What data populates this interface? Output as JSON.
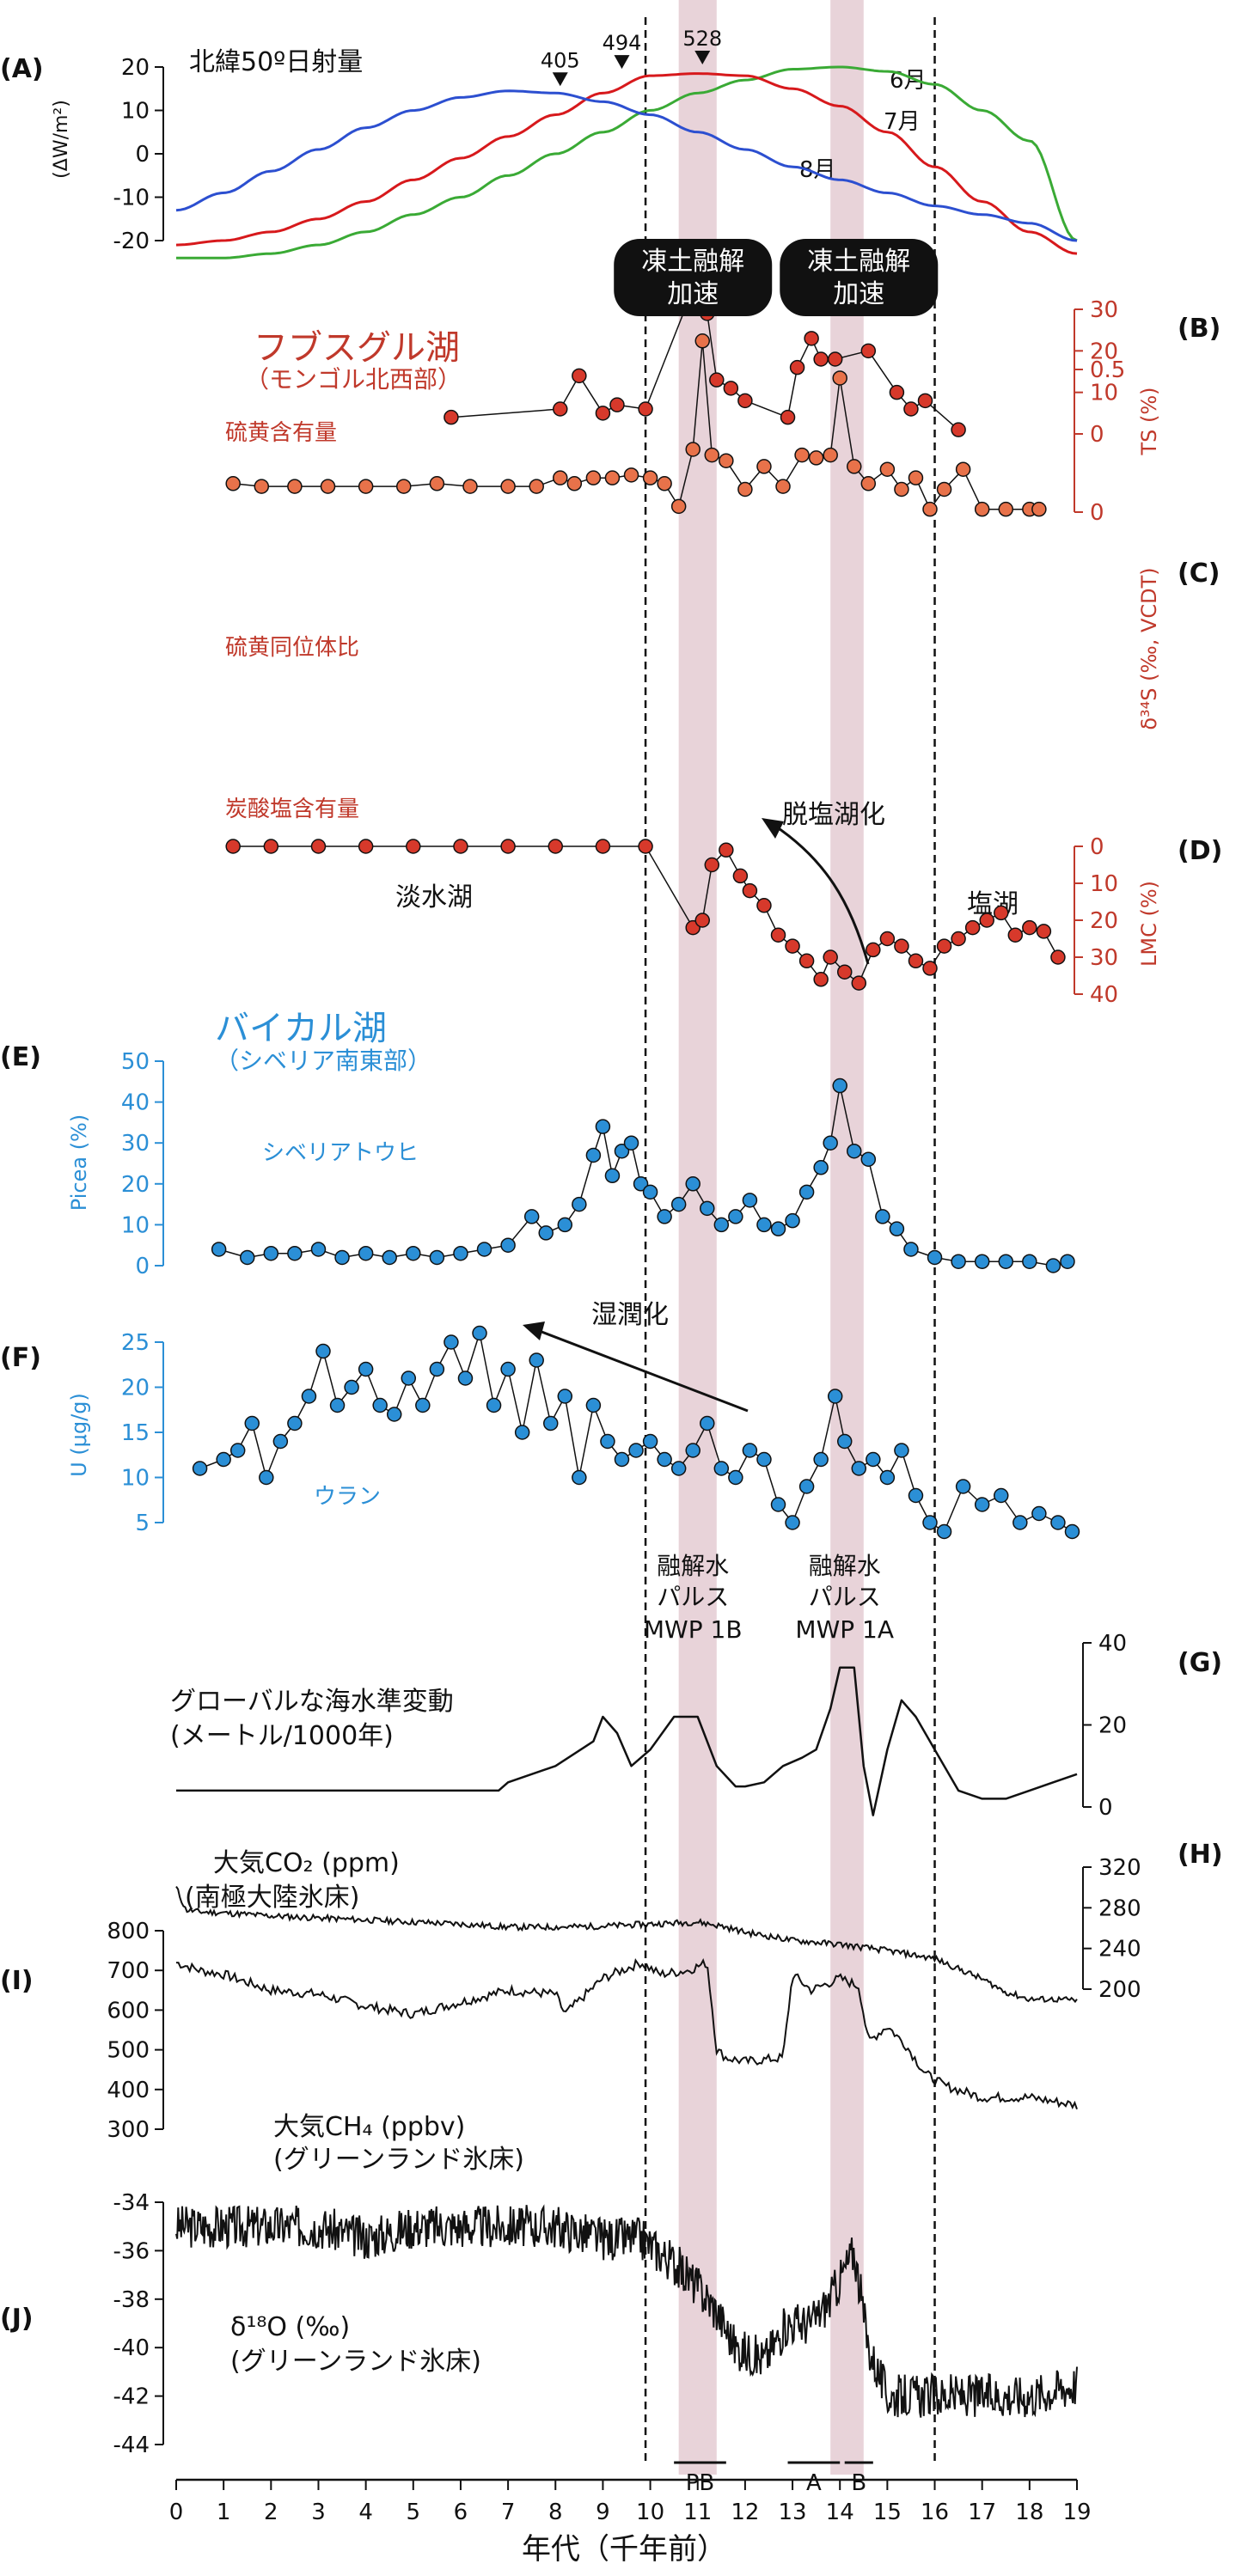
{
  "colors": {
    "insolation": {
      "jun": "#3aaa35",
      "jul": "#d7191c",
      "aug": "#2c4fd0"
    },
    "hovsgol_ts": "#e8724a",
    "hovsgol_title": "#c0392b",
    "hovsgol_text": "#c0392b",
    "d34s": "#c0392b",
    "lmc": "#c0392b",
    "baikal": "#2b8fd6",
    "baikal_title": "#2b8fd6",
    "band": "#e8d3d9",
    "black": "#111111"
  },
  "bands_kyr": [
    [
      10.6,
      11.4
    ],
    [
      13.8,
      14.5
    ]
  ],
  "dashed_lines_kyr": [
    9.9,
    16.0
  ],
  "x_axis": {
    "label": "年代（千年前）",
    "ticks": [
      "0",
      "1",
      "2",
      "3",
      "4",
      "5",
      "6",
      "7",
      "8",
      "9",
      "10",
      "11",
      "12",
      "13",
      "14",
      "15",
      "16",
      "17",
      "18",
      "19"
    ],
    "min": 0,
    "max": 19
  },
  "callouts": [
    {
      "line1": "凍土融解",
      "line2": "加速",
      "center_kyr": 10.9
    },
    {
      "line1": "凍土融解",
      "line2": "加速",
      "center_kyr": 14.4
    }
  ],
  "mwp_labels": [
    {
      "line1": "融解水",
      "line2": "パルス",
      "line3": "MWP 1B"
    },
    {
      "line1": "融解水",
      "line2": "パルス",
      "line3": "MWP 1A"
    }
  ],
  "period_bars": [
    {
      "label": "PB",
      "from": 10.5,
      "to": 11.6
    },
    {
      "label": "A",
      "from": 12.9,
      "to": 14.0
    },
    {
      "label": "B",
      "from": 14.1,
      "to": 14.7
    }
  ],
  "chart_data": [
    {
      "panel": "(A)",
      "type": "line",
      "title": "北緯50º日射量",
      "ylabel": "(ΔW/m²)",
      "ylim": [
        -25,
        25
      ],
      "yticks": [
        "20",
        "10",
        "0",
        "-10",
        "-20"
      ],
      "series": [
        {
          "name": "6月",
          "x": [
            0,
            1,
            2,
            3,
            4,
            5,
            6,
            7,
            8,
            9,
            10,
            11,
            12,
            13,
            14,
            15,
            16,
            17,
            18,
            19
          ],
          "values": [
            -24,
            -24,
            -23,
            -21,
            -18,
            -14,
            -10,
            -5,
            0,
            5,
            10,
            14,
            17,
            19.5,
            20,
            19,
            16,
            10,
            3,
            -20
          ]
        },
        {
          "name": "7月",
          "x": [
            0,
            1,
            2,
            3,
            4,
            5,
            6,
            7,
            8,
            9,
            10,
            11,
            12,
            13,
            14,
            15,
            16,
            17,
            18,
            19
          ],
          "values": [
            -21,
            -20,
            -18,
            -15,
            -11,
            -6,
            -1,
            4,
            9,
            14,
            18,
            18.5,
            18,
            15,
            11,
            5,
            -3,
            -11,
            -18,
            -23
          ]
        },
        {
          "name": "8月",
          "x": [
            0,
            1,
            2,
            3,
            4,
            5,
            6,
            7,
            8,
            9,
            10,
            11,
            12,
            13,
            14,
            15,
            16,
            17,
            18,
            19
          ],
          "values": [
            -13,
            -9,
            -4,
            1,
            6,
            10,
            13,
            14.5,
            14,
            12,
            9,
            5,
            1,
            -3,
            -6,
            -9,
            -12,
            -14,
            -16,
            -20
          ]
        }
      ],
      "markers": [
        {
          "label": "405",
          "x": 8.1,
          "y": 14
        },
        {
          "label": "494",
          "x": 9.4,
          "y": 18
        },
        {
          "label": "528",
          "x": 11.1,
          "y": 19
        }
      ]
    },
    {
      "panel": "(B)",
      "type": "scatter",
      "title": "フブスグル湖",
      "subtitle": "（モンゴル北西部）",
      "annotation": "硫黄含有量",
      "ylabel": "TS (%)",
      "ylim": [
        0,
        0.65
      ],
      "yticks": [
        "0.5",
        "0"
      ],
      "x": [
        1.2,
        1.8,
        2.5,
        3.2,
        4.0,
        4.8,
        5.5,
        6.2,
        7.0,
        7.6,
        8.1,
        8.4,
        8.8,
        9.2,
        9.6,
        10.0,
        10.3,
        10.6,
        10.9,
        11.1,
        11.3,
        11.6,
        12.0,
        12.4,
        12.8,
        13.2,
        13.5,
        13.8,
        14.0,
        14.3,
        14.6,
        15.0,
        15.3,
        15.6,
        15.9,
        16.2,
        16.6,
        17.0,
        17.5,
        18.0,
        18.2
      ],
      "values": [
        0.1,
        0.09,
        0.09,
        0.09,
        0.09,
        0.09,
        0.1,
        0.09,
        0.09,
        0.09,
        0.12,
        0.1,
        0.12,
        0.12,
        0.13,
        0.12,
        0.1,
        0.02,
        0.22,
        0.6,
        0.2,
        0.18,
        0.08,
        0.16,
        0.09,
        0.2,
        0.19,
        0.2,
        0.47,
        0.16,
        0.1,
        0.15,
        0.08,
        0.12,
        0.01,
        0.08,
        0.15,
        0.01,
        0.01,
        0.01,
        0.01
      ]
    },
    {
      "panel": "(C)",
      "type": "scatter",
      "annotation": "硫黄同位体比",
      "ylabel": "δ³⁴S (‰, VCDT)",
      "ylim": [
        0,
        33
      ],
      "yticks": [
        "30",
        "20",
        "10",
        "0"
      ],
      "x": [
        5.8,
        8.1,
        8.5,
        9.0,
        9.3,
        9.9,
        10.8,
        11.2,
        11.4,
        11.7,
        12.0,
        12.9,
        13.1,
        13.4,
        13.6,
        13.9,
        14.6,
        15.2,
        15.5,
        15.8,
        16.5
      ],
      "values": [
        4,
        6,
        14,
        5,
        7,
        6,
        32,
        29,
        13,
        11,
        8,
        4,
        16,
        23,
        18,
        18,
        20,
        10,
        6,
        8,
        1
      ]
    },
    {
      "panel": "(D)",
      "type": "scatter",
      "annotation": "炭酸塩含有量",
      "ylabel": "LMC (%)",
      "ylim": [
        0,
        40
      ],
      "yticks": [
        "0",
        "10",
        "20",
        "30",
        "40"
      ],
      "labels": {
        "freshwater": "淡水湖",
        "saline": "塩湖",
        "desalination": "脱塩湖化"
      },
      "x": [
        1.2,
        2.0,
        3.0,
        4.0,
        5.0,
        6.0,
        7.0,
        8.0,
        9.0,
        9.9,
        10.9,
        11.1,
        11.3,
        11.6,
        11.9,
        12.1,
        12.4,
        12.7,
        13.0,
        13.3,
        13.6,
        13.8,
        14.1,
        14.4,
        14.7,
        15.0,
        15.3,
        15.6,
        15.9,
        16.2,
        16.5,
        16.8,
        17.1,
        17.4,
        17.7,
        18.0,
        18.3,
        18.6
      ],
      "values": [
        0,
        0,
        0,
        0,
        0,
        0,
        0,
        0,
        0,
        0,
        22,
        20,
        5,
        1,
        8,
        12,
        16,
        24,
        27,
        31,
        36,
        30,
        34,
        37,
        28,
        25,
        27,
        31,
        33,
        27,
        25,
        22,
        20,
        18,
        24,
        22,
        23,
        30
      ]
    },
    {
      "panel": "(E)",
      "type": "scatter",
      "title": "バイカル湖",
      "subtitle": "（シベリア南東部）",
      "annotation": "シベリアトウヒ",
      "ylabel": "Picea (%)",
      "ylim": [
        0,
        50
      ],
      "yticks": [
        "50",
        "40",
        "30",
        "20",
        "10",
        "0"
      ],
      "x": [
        0.9,
        1.5,
        2.0,
        2.5,
        3.0,
        3.5,
        4.0,
        4.5,
        5.0,
        5.5,
        6.0,
        6.5,
        7.0,
        7.5,
        7.8,
        8.2,
        8.5,
        8.8,
        9.0,
        9.2,
        9.4,
        9.6,
        9.8,
        10.0,
        10.3,
        10.6,
        10.9,
        11.2,
        11.5,
        11.8,
        12.1,
        12.4,
        12.7,
        13.0,
        13.3,
        13.6,
        13.8,
        14.0,
        14.3,
        14.6,
        14.9,
        15.2,
        15.5,
        16.0,
        16.5,
        17.0,
        17.5,
        18.0,
        18.5,
        18.8
      ],
      "values": [
        4,
        2,
        3,
        3,
        4,
        2,
        3,
        2,
        3,
        2,
        3,
        4,
        5,
        12,
        8,
        10,
        15,
        27,
        34,
        22,
        28,
        30,
        20,
        18,
        12,
        15,
        20,
        14,
        10,
        12,
        16,
        10,
        9,
        11,
        18,
        24,
        30,
        44,
        28,
        26,
        12,
        9,
        4,
        2,
        1,
        1,
        1,
        1,
        0,
        1
      ]
    },
    {
      "panel": "(F)",
      "type": "scatter",
      "annotation": "ウラン",
      "ylabel": "U (μg/g)",
      "ylim": [
        2,
        26
      ],
      "yticks": [
        "25",
        "20",
        "15",
        "10",
        "5"
      ],
      "labels": {
        "humidification": "湿潤化"
      },
      "x": [
        0.5,
        1.0,
        1.3,
        1.6,
        1.9,
        2.2,
        2.5,
        2.8,
        3.1,
        3.4,
        3.7,
        4.0,
        4.3,
        4.6,
        4.9,
        5.2,
        5.5,
        5.8,
        6.1,
        6.4,
        6.7,
        7.0,
        7.3,
        7.6,
        7.9,
        8.2,
        8.5,
        8.8,
        9.1,
        9.4,
        9.7,
        10.0,
        10.3,
        10.6,
        10.9,
        11.2,
        11.5,
        11.8,
        12.1,
        12.4,
        12.7,
        13.0,
        13.3,
        13.6,
        13.9,
        14.1,
        14.4,
        14.7,
        15.0,
        15.3,
        15.6,
        15.9,
        16.2,
        16.6,
        17.0,
        17.4,
        17.8,
        18.2,
        18.6,
        18.9
      ],
      "values": [
        11,
        12,
        13,
        16,
        10,
        14,
        16,
        19,
        24,
        18,
        20,
        22,
        18,
        17,
        21,
        18,
        22,
        25,
        21,
        26,
        18,
        22,
        15,
        23,
        16,
        19,
        10,
        18,
        14,
        12,
        13,
        14,
        12,
        11,
        13,
        16,
        11,
        10,
        13,
        12,
        7,
        5,
        9,
        12,
        19,
        14,
        11,
        12,
        10,
        13,
        8,
        5,
        4,
        9,
        7,
        8,
        5,
        6,
        5,
        4
      ]
    },
    {
      "panel": "(G)",
      "type": "line",
      "title": "グローバルな海水準変動",
      "subtitle": "(メートル/1000年)",
      "ylim": [
        -5,
        42
      ],
      "yticks": [
        "40",
        "20",
        "0"
      ],
      "x": [
        0,
        0.5,
        1,
        2,
        3,
        4,
        5,
        6,
        6.8,
        7.0,
        8.0,
        8.8,
        9.0,
        9.3,
        9.6,
        10.0,
        10.5,
        11.0,
        11.4,
        11.8,
        12.0,
        12.4,
        12.8,
        13.2,
        13.5,
        13.8,
        14.0,
        14.3,
        14.5,
        14.7,
        15.0,
        15.3,
        15.6,
        16.0,
        16.5,
        17.0,
        17.5,
        18.0,
        18.5,
        19.0
      ],
      "values": [
        4,
        4,
        4,
        4,
        4,
        4,
        4,
        4,
        4,
        6,
        10,
        16,
        22,
        18,
        10,
        14,
        22,
        22,
        10,
        5,
        5,
        6,
        10,
        12,
        14,
        24,
        34,
        34,
        10,
        -2,
        14,
        26,
        22,
        14,
        4,
        2,
        2,
        4,
        6,
        8
      ]
    },
    {
      "panel": "(H)",
      "type": "line",
      "title": "大気CO₂ (ppm)",
      "subtitle": "(南極大陸氷床)",
      "ylim": [
        180,
        320
      ],
      "yticks": [
        "320",
        "280",
        "240",
        "200"
      ],
      "x": [
        0,
        0.2,
        0.5,
        1,
        2,
        3,
        4,
        5,
        6,
        7,
        8,
        9,
        10,
        10.5,
        11,
        11.5,
        12,
        13,
        14,
        15,
        16,
        16.5,
        17,
        17.5,
        18,
        18.5,
        19
      ],
      "values": [
        300,
        278,
        276,
        275,
        272,
        270,
        268,
        266,
        264,
        261,
        261,
        262,
        264,
        265,
        266,
        262,
        256,
        248,
        244,
        238,
        230,
        220,
        210,
        197,
        190,
        190,
        189
      ]
    },
    {
      "panel": "(I)",
      "type": "line",
      "title": "大気CH₄ (ppbv)",
      "subtitle": "(グリーンランド氷床)",
      "ylim": [
        300,
        800
      ],
      "yticks": [
        "800",
        "700",
        "600",
        "500",
        "400",
        "300"
      ],
      "x": [
        0,
        0.5,
        1,
        2,
        3,
        4,
        5,
        6,
        7,
        8,
        8.2,
        9,
        9.8,
        10.2,
        10.8,
        11.2,
        11.4,
        11.6,
        12.0,
        12.8,
        13.0,
        13.4,
        14.0,
        14.4,
        14.6,
        15.0,
        15.4,
        15.8,
        16.2,
        17.0,
        18.0,
        19.0
      ],
      "values": [
        720,
        700,
        690,
        650,
        640,
        610,
        590,
        620,
        650,
        640,
        590,
        680,
        720,
        690,
        700,
        720,
        500,
        480,
        470,
        480,
        690,
        650,
        680,
        660,
        520,
        560,
        510,
        440,
        410,
        380,
        380,
        360
      ]
    },
    {
      "panel": "(J)",
      "type": "line",
      "title": "δ¹⁸O (‰)",
      "subtitle": "(グリーンランド氷床)",
      "ylim": [
        -45,
        -33.5
      ],
      "yticks": [
        "-34",
        "-36",
        "-38",
        "-40",
        "-42",
        "-44"
      ],
      "x": [
        0,
        1,
        2,
        3,
        4,
        5,
        6,
        7,
        8,
        9,
        9.8,
        10.5,
        11.0,
        11.4,
        11.8,
        12.4,
        12.9,
        13.4,
        13.8,
        14.3,
        14.6,
        15.0,
        16.0,
        17.0,
        18.0,
        19.0
      ],
      "values": [
        -35,
        -35,
        -35,
        -35,
        -35.5,
        -35,
        -35,
        -35,
        -35,
        -35.5,
        -35.5,
        -36.5,
        -37.5,
        -38.5,
        -40,
        -40.5,
        -39,
        -39,
        -38,
        -36,
        -40,
        -42,
        -42,
        -42,
        -42,
        -41.5
      ]
    }
  ]
}
